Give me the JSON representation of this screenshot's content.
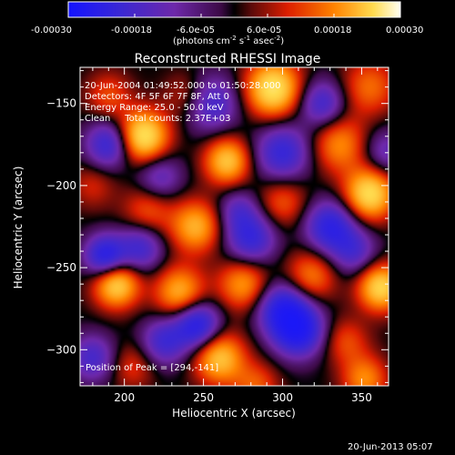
{
  "colorbar": {
    "ticks": [
      "-0.00030",
      "-0.00018",
      "-6.0e-05",
      "6.0e-05",
      "0.00018",
      "0.00030"
    ],
    "unit_label": "(photons cm",
    "unit_exp1": "-2",
    "unit_mid": " s",
    "unit_exp2": "-1",
    "unit_mid2": " asec",
    "unit_exp3": "-2",
    "unit_end": ")"
  },
  "plot": {
    "title": "Reconstructed RHESSI Image",
    "info_lines": [
      "20-Jun-2004 01:49:52.000 to 01:50:28.000",
      "Detectors: 4F 5F 6F 7F 8F, Att 0",
      "Energy Range: 25.0 - 50.0 keV",
      "Clean     Total counts: 2.37E+03"
    ],
    "peak_label": "Position of Peak = [294,-141]"
  },
  "footer": {
    "timestamp": "20-Jun-2013 05:07"
  },
  "chart_data": {
    "type": "heatmap",
    "title": "Reconstructed RHESSI Image",
    "xlabel": "Heliocentric X (arcsec)",
    "ylabel": "Heliocentric Y (arcsec)",
    "xlim": [
      172,
      367
    ],
    "ylim": [
      -322,
      -128
    ],
    "xticks": [
      200,
      250,
      300,
      350
    ],
    "yticks": [
      -150,
      -200,
      -250,
      -300
    ],
    "colorbar_range": [
      -0.0003,
      0.0003
    ],
    "sources": [
      {
        "x": 294,
        "y": -141,
        "v": 1.0,
        "r": 12
      },
      {
        "x": 212,
        "y": -170,
        "v": 1.0,
        "r": 11
      },
      {
        "x": 190,
        "y": -145,
        "v": 0.35,
        "r": 10
      },
      {
        "x": 240,
        "y": -145,
        "v": 0.3,
        "r": 10
      },
      {
        "x": 355,
        "y": -140,
        "v": 0.45,
        "r": 12
      },
      {
        "x": 265,
        "y": -185,
        "v": 0.8,
        "r": 10
      },
      {
        "x": 336,
        "y": -175,
        "v": 0.55,
        "r": 12
      },
      {
        "x": 245,
        "y": -225,
        "v": 0.7,
        "r": 11
      },
      {
        "x": 215,
        "y": -215,
        "v": 0.4,
        "r": 11
      },
      {
        "x": 300,
        "y": -210,
        "v": 0.4,
        "r": 11
      },
      {
        "x": 355,
        "y": -205,
        "v": 0.95,
        "r": 11
      },
      {
        "x": 195,
        "y": -260,
        "v": 0.9,
        "r": 10
      },
      {
        "x": 235,
        "y": -265,
        "v": 0.7,
        "r": 11
      },
      {
        "x": 275,
        "y": -260,
        "v": 0.6,
        "r": 11
      },
      {
        "x": 318,
        "y": -255,
        "v": 0.5,
        "r": 11
      },
      {
        "x": 362,
        "y": -262,
        "v": 0.9,
        "r": 10
      },
      {
        "x": 260,
        "y": -305,
        "v": 0.8,
        "r": 11
      },
      {
        "x": 205,
        "y": -310,
        "v": 0.3,
        "r": 10
      },
      {
        "x": 340,
        "y": -295,
        "v": 0.35,
        "r": 10
      },
      {
        "x": 352,
        "y": -318,
        "v": 0.55,
        "r": 10
      },
      {
        "x": 283,
        "y": -322,
        "v": 0.4,
        "r": 10
      },
      {
        "x": 180,
        "y": -200,
        "v": 0.25,
        "r": 10
      },
      {
        "x": 190,
        "y": -175,
        "v": -0.7,
        "r": 10
      },
      {
        "x": 255,
        "y": -150,
        "v": -0.6,
        "r": 12
      },
      {
        "x": 325,
        "y": -150,
        "v": -0.6,
        "r": 10
      },
      {
        "x": 300,
        "y": -180,
        "v": -0.7,
        "r": 12
      },
      {
        "x": 222,
        "y": -195,
        "v": -0.45,
        "r": 10
      },
      {
        "x": 330,
        "y": -225,
        "v": -0.8,
        "r": 11
      },
      {
        "x": 280,
        "y": -232,
        "v": -0.7,
        "r": 11
      },
      {
        "x": 188,
        "y": -243,
        "v": -0.9,
        "r": 9
      },
      {
        "x": 210,
        "y": -238,
        "v": -0.6,
        "r": 10
      },
      {
        "x": 300,
        "y": -275,
        "v": -0.8,
        "r": 11
      },
      {
        "x": 225,
        "y": -295,
        "v": -0.6,
        "r": 10
      },
      {
        "x": 180,
        "y": -305,
        "v": -0.55,
        "r": 10
      },
      {
        "x": 246,
        "y": -285,
        "v": -0.9,
        "r": 10
      },
      {
        "x": 310,
        "y": -288,
        "v": -1.0,
        "r": 11
      },
      {
        "x": 345,
        "y": -240,
        "v": -0.5,
        "r": 10
      },
      {
        "x": 365,
        "y": -180,
        "v": -0.4,
        "r": 10
      },
      {
        "x": 272,
        "y": -215,
        "v": -0.4,
        "r": 9
      }
    ]
  }
}
